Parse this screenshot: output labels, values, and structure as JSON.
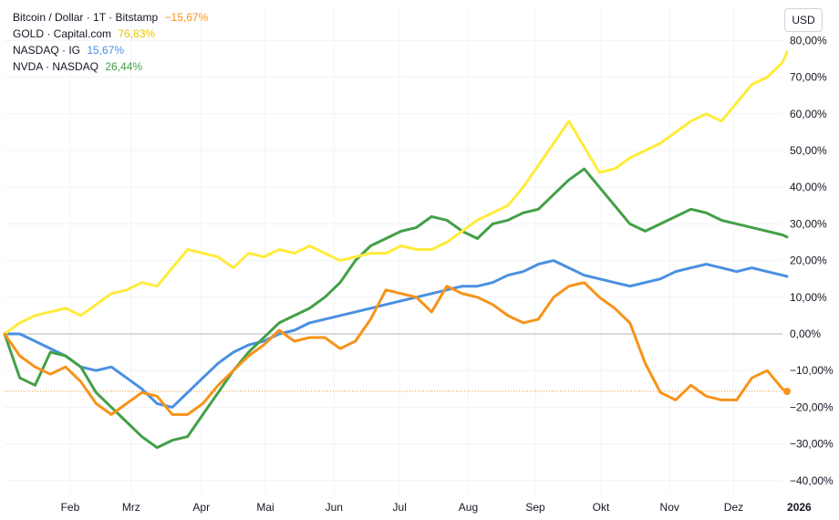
{
  "currency_button": "USD",
  "chart_data": {
    "type": "line",
    "title": "",
    "xlabel": "",
    "ylabel": "",
    "ylim": [
      -42,
      82
    ],
    "x_range": [
      0,
      51
    ],
    "x_ticks": [
      {
        "label": "Feb",
        "x": 4.3
      },
      {
        "label": "Mrz",
        "x": 8.3
      },
      {
        "label": "Apr",
        "x": 12.9
      },
      {
        "label": "Mai",
        "x": 17.1
      },
      {
        "label": "Jun",
        "x": 21.6
      },
      {
        "label": "Jul",
        "x": 25.9
      },
      {
        "label": "Aug",
        "x": 30.4
      },
      {
        "label": "Sep",
        "x": 34.8
      },
      {
        "label": "Okt",
        "x": 39.1
      },
      {
        "label": "Nov",
        "x": 43.6
      },
      {
        "label": "Dez",
        "x": 47.8
      },
      {
        "label": "2026",
        "x": 52.1
      }
    ],
    "y_ticks": [
      {
        "label": "80,00%",
        "v": 80
      },
      {
        "label": "70,00%",
        "v": 70
      },
      {
        "label": "60,00%",
        "v": 60
      },
      {
        "label": "50,00%",
        "v": 50
      },
      {
        "label": "40,00%",
        "v": 40
      },
      {
        "label": "30,00%",
        "v": 30
      },
      {
        "label": "20,00%",
        "v": 20
      },
      {
        "label": "10,00%",
        "v": 10
      },
      {
        "label": "0,00%",
        "v": 0
      },
      {
        "label": "−10,00%",
        "v": -10
      },
      {
        "label": "−20,00%",
        "v": -20
      },
      {
        "label": "−30,00%",
        "v": -30
      },
      {
        "label": "−40,00%",
        "v": -40
      }
    ],
    "zero_line": 0,
    "price_line": {
      "series": "Bitcoin",
      "value": -15.67
    },
    "series": [
      {
        "name": "Bitcoin",
        "legend": "Bitcoin / Dollar · 1T · Bitstamp",
        "value_label": "−15,67%",
        "color": "#f7931a",
        "x": [
          0,
          1,
          2,
          3,
          4,
          5,
          6,
          7,
          8,
          9,
          10,
          11,
          12,
          13,
          14,
          15,
          16,
          17,
          18,
          19,
          20,
          21,
          22,
          23,
          24,
          25,
          26,
          27,
          28,
          29,
          30,
          31,
          32,
          33,
          34,
          35,
          36,
          37,
          38,
          39,
          40,
          41,
          42,
          43,
          44,
          45,
          46,
          47,
          48,
          49,
          50,
          51,
          51.3
        ],
        "values": [
          0,
          -6,
          -9,
          -11,
          -9,
          -13,
          -19,
          -22,
          -19,
          -16,
          -17,
          -22,
          -22,
          -19,
          -14,
          -10,
          -6,
          -3,
          1,
          -2,
          -1,
          -1,
          -4,
          -2,
          4,
          12,
          11,
          10,
          6,
          13,
          11,
          10,
          8,
          5,
          3,
          4,
          10,
          13,
          14,
          10,
          7,
          3,
          -8,
          -16,
          -18,
          -14,
          -17,
          -18,
          -18,
          -12,
          -10,
          -15,
          -15.67
        ]
      },
      {
        "name": "GOLD",
        "legend": "GOLD · Capital.com",
        "value_label": "76,83%",
        "color": "#ffeb3b",
        "x": [
          0,
          1,
          2,
          3,
          4,
          5,
          6,
          7,
          8,
          9,
          10,
          11,
          12,
          13,
          14,
          15,
          16,
          17,
          18,
          19,
          20,
          21,
          22,
          23,
          24,
          25,
          26,
          27,
          28,
          29,
          30,
          31,
          32,
          33,
          34,
          35,
          36,
          37,
          38,
          39,
          40,
          41,
          42,
          43,
          44,
          45,
          46,
          47,
          48,
          49,
          50,
          51,
          51.3
        ],
        "values": [
          0,
          3,
          5,
          6,
          7,
          5,
          8,
          11,
          12,
          14,
          13,
          18,
          23,
          22,
          21,
          18,
          22,
          21,
          23,
          22,
          24,
          22,
          20,
          21,
          22,
          22,
          24,
          23,
          23,
          25,
          28,
          31,
          33,
          35,
          40,
          46,
          52,
          58,
          51,
          44,
          45,
          48,
          50,
          52,
          55,
          58,
          60,
          58,
          63,
          68,
          70,
          74,
          76.83
        ]
      },
      {
        "name": "NASDAQ",
        "legend": "NASDAQ · IG",
        "value_label": "15,67%",
        "color": "#4a90e2",
        "x": [
          0,
          1,
          2,
          3,
          4,
          5,
          6,
          7,
          8,
          9,
          10,
          11,
          12,
          13,
          14,
          15,
          16,
          17,
          18,
          19,
          20,
          21,
          22,
          23,
          24,
          25,
          26,
          27,
          28,
          29,
          30,
          31,
          32,
          33,
          34,
          35,
          36,
          37,
          38,
          39,
          40,
          41,
          42,
          43,
          44,
          45,
          46,
          47,
          48,
          49,
          50,
          51,
          51.3
        ],
        "values": [
          0,
          0,
          -2,
          -4,
          -6,
          -9,
          -10,
          -9,
          -12,
          -15,
          -19,
          -20,
          -16,
          -12,
          -8,
          -5,
          -3,
          -2,
          0,
          1,
          3,
          4,
          5,
          6,
          7,
          8,
          9,
          10,
          11,
          12,
          13,
          13,
          14,
          16,
          17,
          19,
          20,
          18,
          16,
          15,
          14,
          13,
          14,
          15,
          17,
          18,
          19,
          18,
          17,
          18,
          17,
          16,
          15.67
        ]
      },
      {
        "name": "NVDA",
        "legend": "NVDA · NASDAQ",
        "value_label": "26,44%",
        "color": "#43a047",
        "x": [
          0,
          1,
          2,
          3,
          4,
          5,
          6,
          7,
          8,
          9,
          10,
          11,
          12,
          13,
          14,
          15,
          16,
          17,
          18,
          19,
          20,
          21,
          22,
          23,
          24,
          25,
          26,
          27,
          28,
          29,
          30,
          31,
          32,
          33,
          34,
          35,
          36,
          37,
          38,
          39,
          40,
          41,
          42,
          43,
          44,
          45,
          46,
          47,
          48,
          49,
          50,
          51,
          51.3
        ],
        "values": [
          0,
          -12,
          -14,
          -5,
          -6,
          -9,
          -16,
          -20,
          -24,
          -28,
          -31,
          -29,
          -28,
          -22,
          -16,
          -10,
          -5,
          -1,
          3,
          5,
          7,
          10,
          14,
          20,
          24,
          26,
          28,
          29,
          32,
          31,
          28,
          26,
          30,
          31,
          33,
          34,
          38,
          42,
          45,
          40,
          35,
          30,
          28,
          30,
          32,
          34,
          33,
          31,
          30,
          29,
          28,
          27,
          26.44
        ]
      }
    ]
  }
}
